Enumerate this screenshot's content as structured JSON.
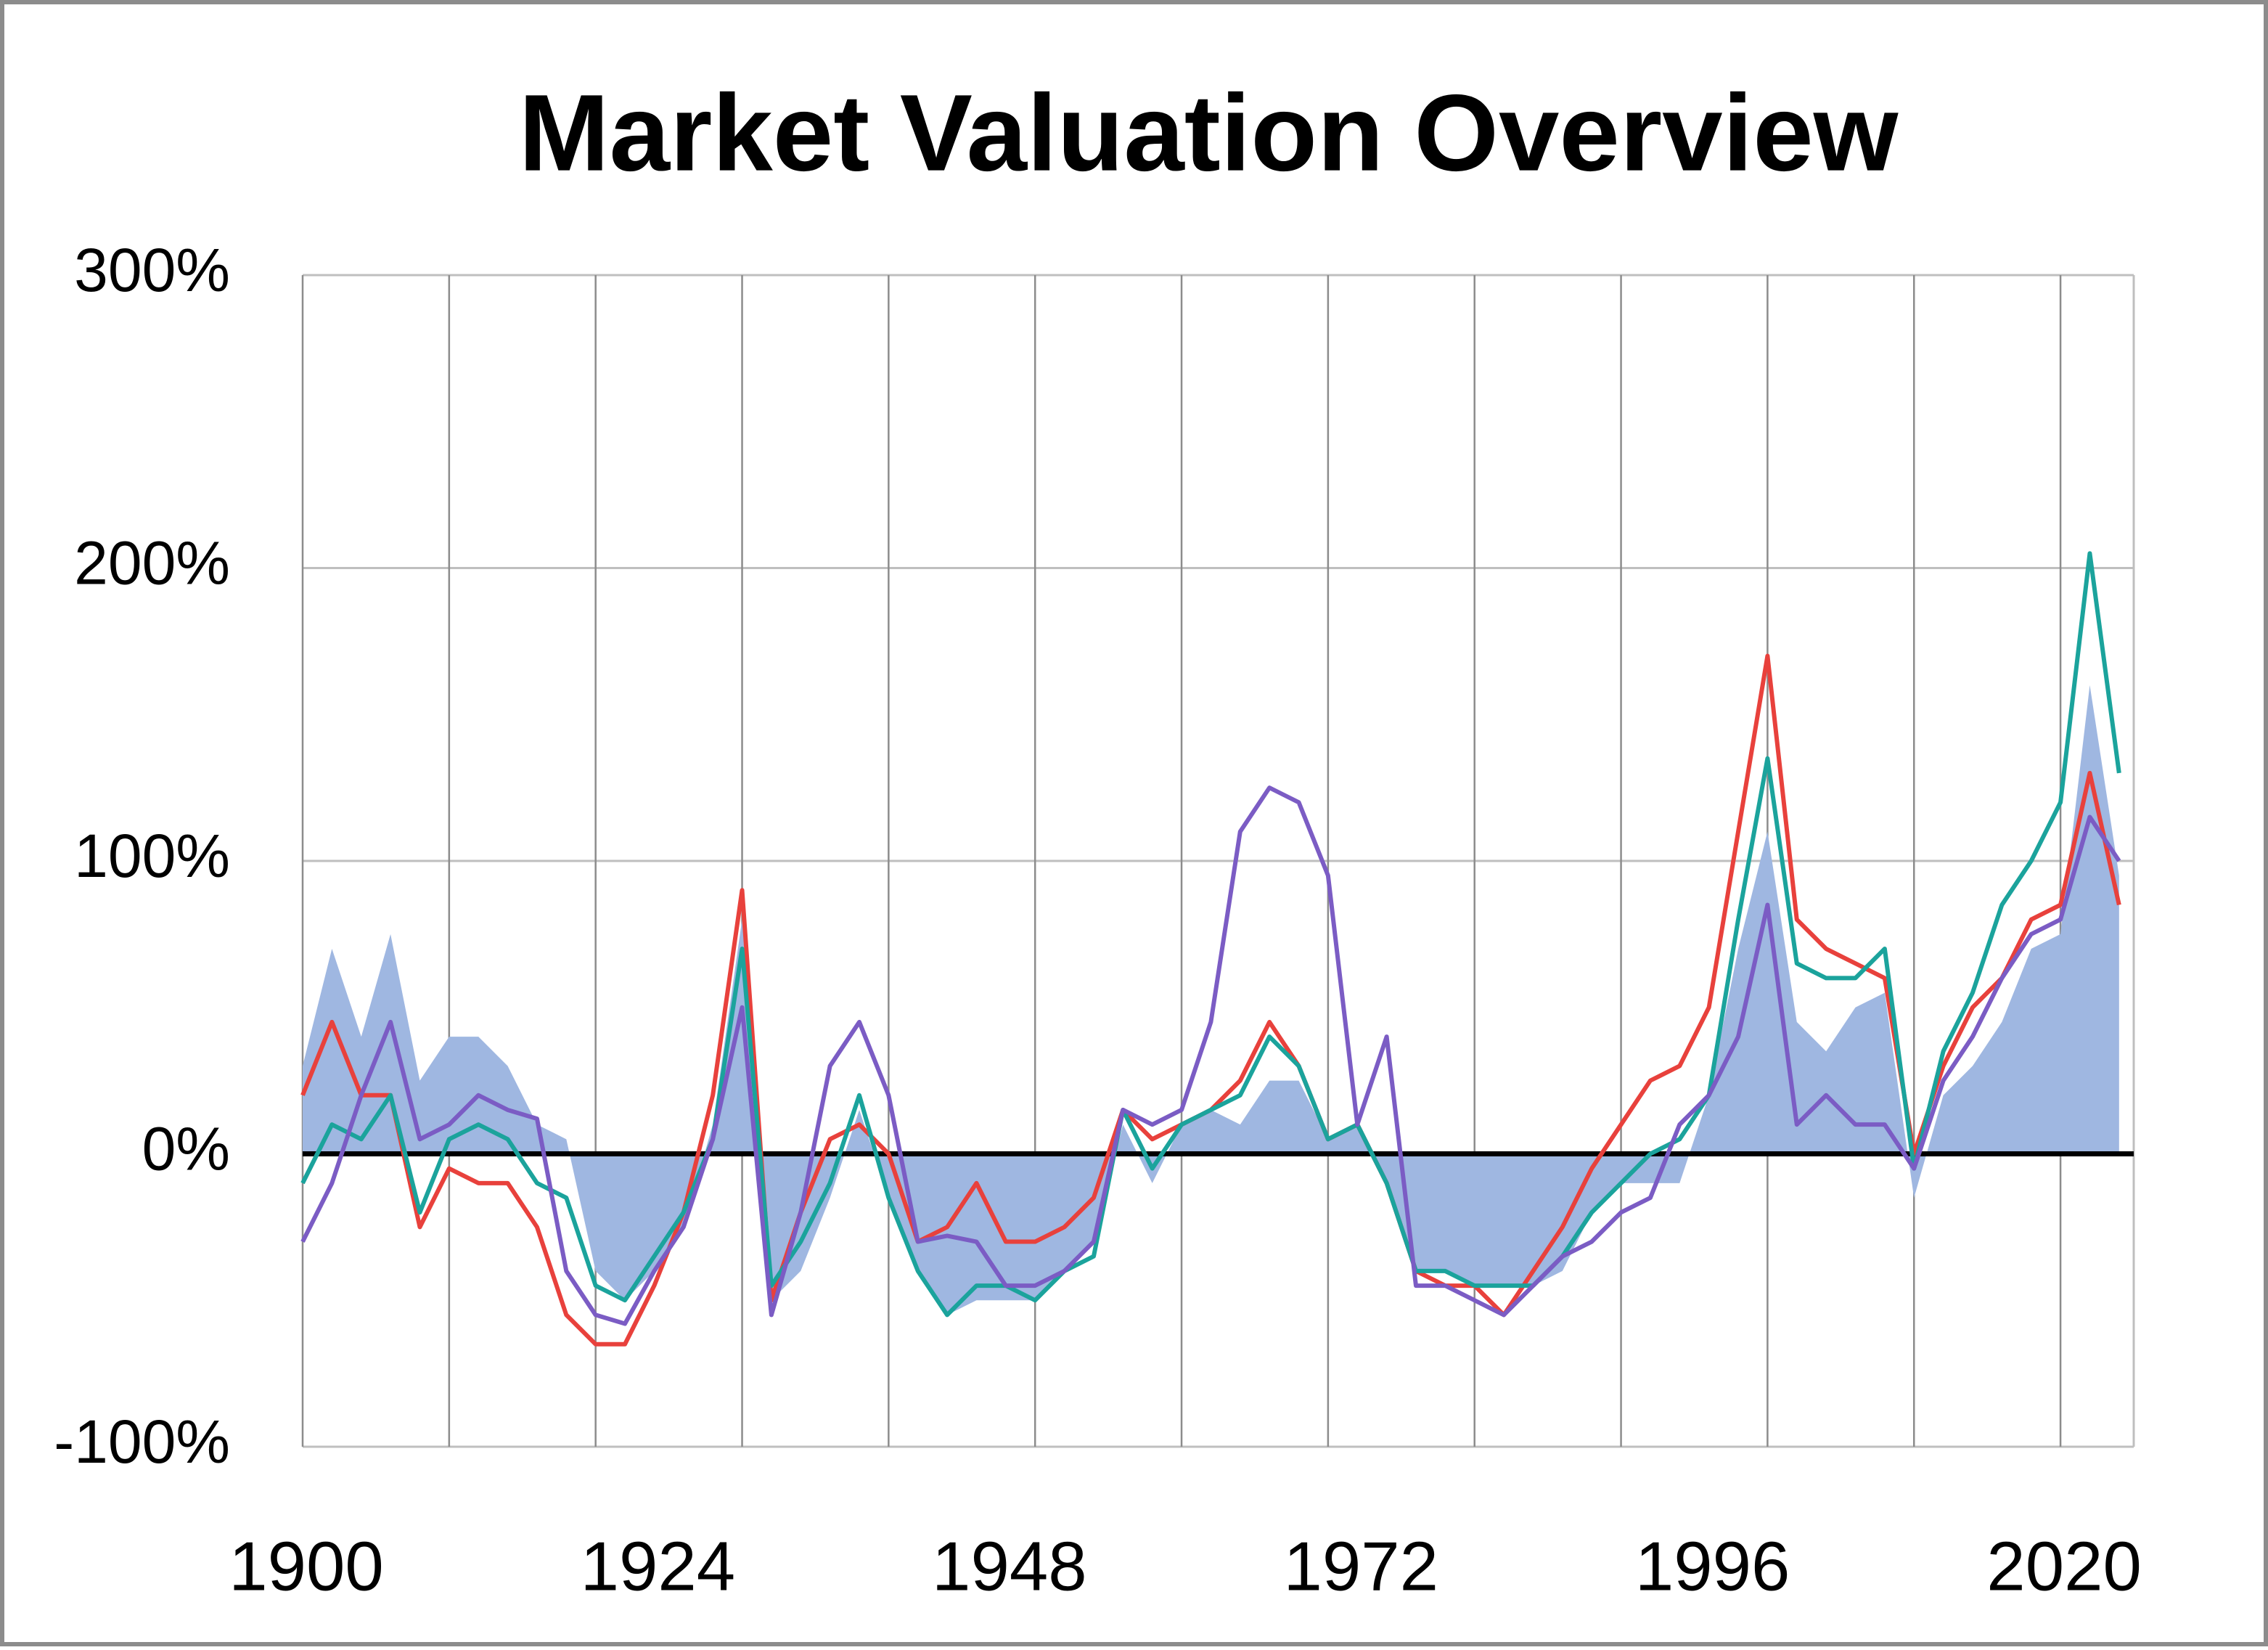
{
  "chart_data": {
    "type": "line",
    "title": "Market Valuation Overview",
    "x": [
      1900,
      1902,
      1904,
      1906,
      1908,
      1910,
      1912,
      1914,
      1916,
      1918,
      1920,
      1922,
      1924,
      1926,
      1928,
      1930,
      1932,
      1934,
      1936,
      1938,
      1940,
      1942,
      1944,
      1946,
      1948,
      1950,
      1952,
      1954,
      1956,
      1958,
      1960,
      1962,
      1964,
      1966,
      1968,
      1970,
      1972,
      1974,
      1976,
      1978,
      1980,
      1982,
      1984,
      1986,
      1988,
      1990,
      1992,
      1994,
      1996,
      1998,
      2000,
      2002,
      2004,
      2006,
      2008,
      2010,
      2012,
      2014,
      2016,
      2018,
      2020,
      2022,
      2024
    ],
    "series": [
      {
        "style": "area",
        "color": "#9fb7e1",
        "values": [
          30,
          70,
          40,
          75,
          25,
          40,
          40,
          30,
          10,
          5,
          -40,
          -50,
          -40,
          -25,
          10,
          80,
          -50,
          -40,
          -15,
          15,
          -15,
          -40,
          -55,
          -50,
          -50,
          -50,
          -40,
          -30,
          10,
          -10,
          10,
          15,
          10,
          25,
          25,
          5,
          10,
          -10,
          -40,
          -40,
          -45,
          -45,
          -45,
          -40,
          -20,
          -10,
          -10,
          -10,
          20,
          70,
          110,
          45,
          35,
          50,
          55,
          -15,
          20,
          30,
          45,
          70,
          75,
          160,
          95
        ]
      },
      {
        "style": "line",
        "color": "#e8413c",
        "values": [
          20,
          45,
          20,
          20,
          -25,
          -5,
          -10,
          -10,
          -25,
          -55,
          -65,
          -65,
          -45,
          -20,
          20,
          90,
          -50,
          -20,
          5,
          10,
          0,
          -30,
          -25,
          -10,
          -30,
          -30,
          -25,
          -15,
          15,
          5,
          10,
          15,
          25,
          45,
          30,
          5,
          10,
          -10,
          -40,
          -45,
          -45,
          -55,
          -40,
          -25,
          -5,
          10,
          25,
          30,
          50,
          110,
          170,
          80,
          70,
          65,
          60,
          0,
          30,
          50,
          60,
          80,
          85,
          130,
          85
        ]
      },
      {
        "style": "line",
        "color": "#1ba39c",
        "values": [
          -10,
          10,
          5,
          20,
          -20,
          5,
          10,
          5,
          -10,
          -15,
          -45,
          -50,
          -35,
          -20,
          5,
          70,
          -45,
          -30,
          -10,
          20,
          -15,
          -40,
          -55,
          -45,
          -45,
          -50,
          -40,
          -35,
          15,
          -5,
          10,
          15,
          20,
          40,
          30,
          5,
          10,
          -10,
          -40,
          -40,
          -45,
          -45,
          -45,
          -35,
          -20,
          -10,
          0,
          5,
          20,
          80,
          135,
          65,
          60,
          60,
          70,
          -5,
          35,
          55,
          85,
          100,
          120,
          205,
          130
        ]
      },
      {
        "style": "line",
        "color": "#7b5cc4",
        "values": [
          -30,
          -10,
          20,
          45,
          5,
          10,
          20,
          15,
          12,
          -40,
          -55,
          -58,
          -40,
          -25,
          5,
          50,
          -55,
          -20,
          30,
          45,
          20,
          -30,
          -28,
          -30,
          -45,
          -45,
          -40,
          -30,
          15,
          10,
          15,
          45,
          110,
          125,
          120,
          95,
          10,
          40,
          -45,
          -45,
          -50,
          -55,
          -45,
          -35,
          -30,
          -20,
          -15,
          10,
          20,
          40,
          85,
          10,
          20,
          10,
          10,
          -5,
          25,
          40,
          60,
          75,
          80,
          115,
          100
        ]
      }
    ],
    "xlim": [
      1900,
      2025
    ],
    "xticks": [
      1900,
      1924,
      1948,
      1972,
      1996,
      2020
    ],
    "x_grid": [
      1900,
      1910,
      1920,
      1930,
      1940,
      1950,
      1960,
      1970,
      1980,
      1990,
      2000,
      2010,
      2020
    ],
    "ylim": [
      -100,
      300
    ],
    "yticks": [
      {
        "value": -100,
        "label": "-100%"
      },
      {
        "value": 0,
        "label": "0%"
      },
      {
        "value": 100,
        "label": "100%"
      },
      {
        "value": 200,
        "label": "200%"
      },
      {
        "value": 300,
        "label": "300%"
      }
    ],
    "grid": true
  }
}
